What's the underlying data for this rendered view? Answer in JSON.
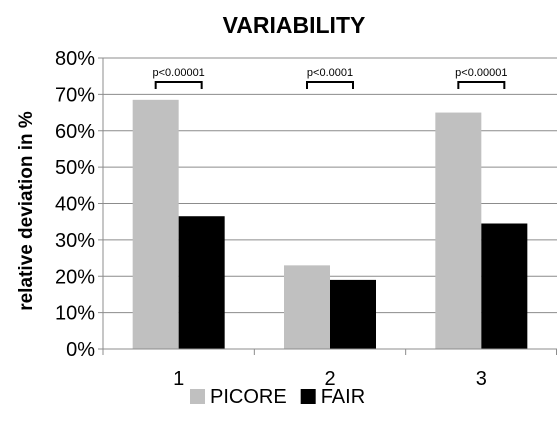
{
  "chart_data": {
    "type": "bar",
    "title": "VARIABILITY",
    "ylabel": "relative deviation in %",
    "xlabel": "",
    "categories": [
      "1",
      "2",
      "3"
    ],
    "series": [
      {
        "name": "PICORE",
        "values": [
          68.5,
          23,
          65
        ],
        "color": "#c0c0c0"
      },
      {
        "name": "FAIR",
        "values": [
          36.5,
          19,
          34.5
        ],
        "color": "#000000"
      }
    ],
    "ylim": [
      0,
      80
    ],
    "yticks": [
      0,
      10,
      20,
      30,
      40,
      50,
      60,
      70,
      80
    ],
    "ytick_labels": [
      "0%",
      "10%",
      "20%",
      "30%",
      "40%",
      "50%",
      "60%",
      "70%",
      "80%"
    ],
    "grid": true,
    "legend_position": "bottom",
    "annotations": [
      {
        "category": "1",
        "text": "p<0.00001"
      },
      {
        "category": "2",
        "text": "p<0.0001"
      },
      {
        "category": "3",
        "text": "p<0.00001"
      }
    ]
  }
}
